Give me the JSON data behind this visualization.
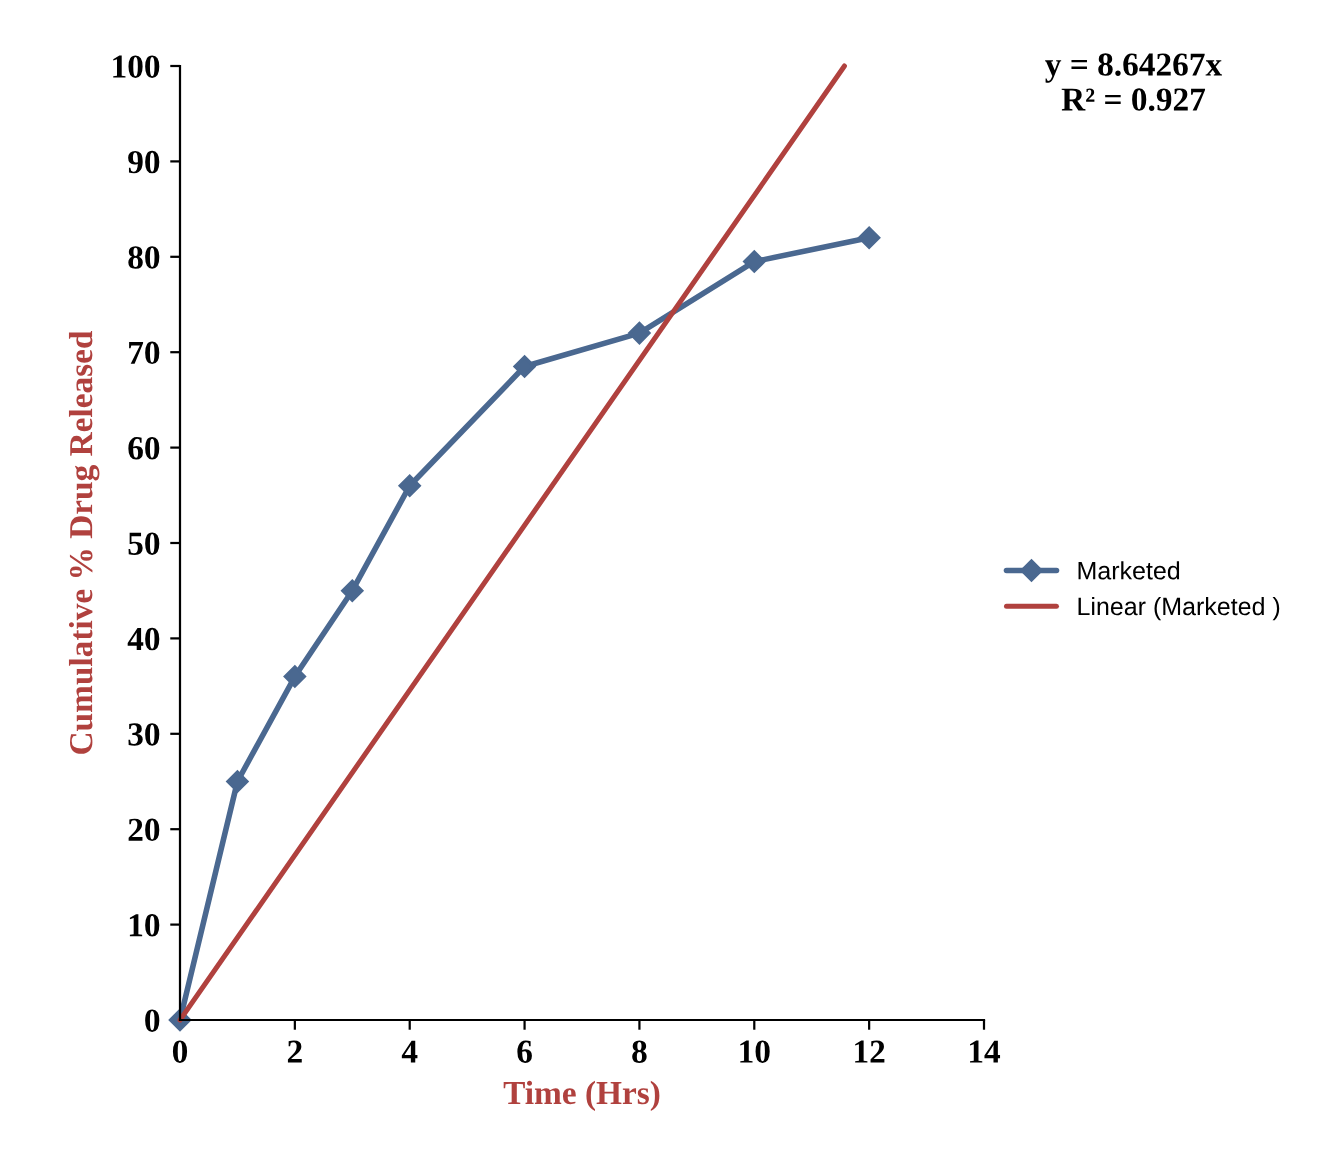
{
  "chart_data": {
    "type": "line",
    "xlabel": "Time (Hrs)",
    "ylabel": "Cumulative % Drug Released",
    "x": [
      0,
      1,
      2,
      3,
      4,
      6,
      8,
      10,
      12
    ],
    "series": [
      {
        "name": "Marketed",
        "color": "#4a6890",
        "values": [
          0,
          25,
          36,
          45,
          56,
          68.5,
          72,
          79.5,
          82
        ],
        "marker": "diamond"
      },
      {
        "name": "Linear (Marketed )",
        "type": "line",
        "color": "#b0413e",
        "x": [
          0,
          11.57
        ],
        "values": [
          0,
          100
        ],
        "marker": "none"
      }
    ],
    "annotations": [
      "y = 8.64267x\nR² = 0.927"
    ],
    "xlim": [
      0,
      14
    ],
    "xticks": [
      0,
      2,
      4,
      6,
      8,
      10,
      12,
      14
    ],
    "ylim": [
      0,
      100
    ],
    "yticks": [
      0,
      10,
      20,
      30,
      40,
      50,
      60,
      70,
      80,
      90,
      100
    ],
    "grid": false,
    "legend": "right"
  }
}
